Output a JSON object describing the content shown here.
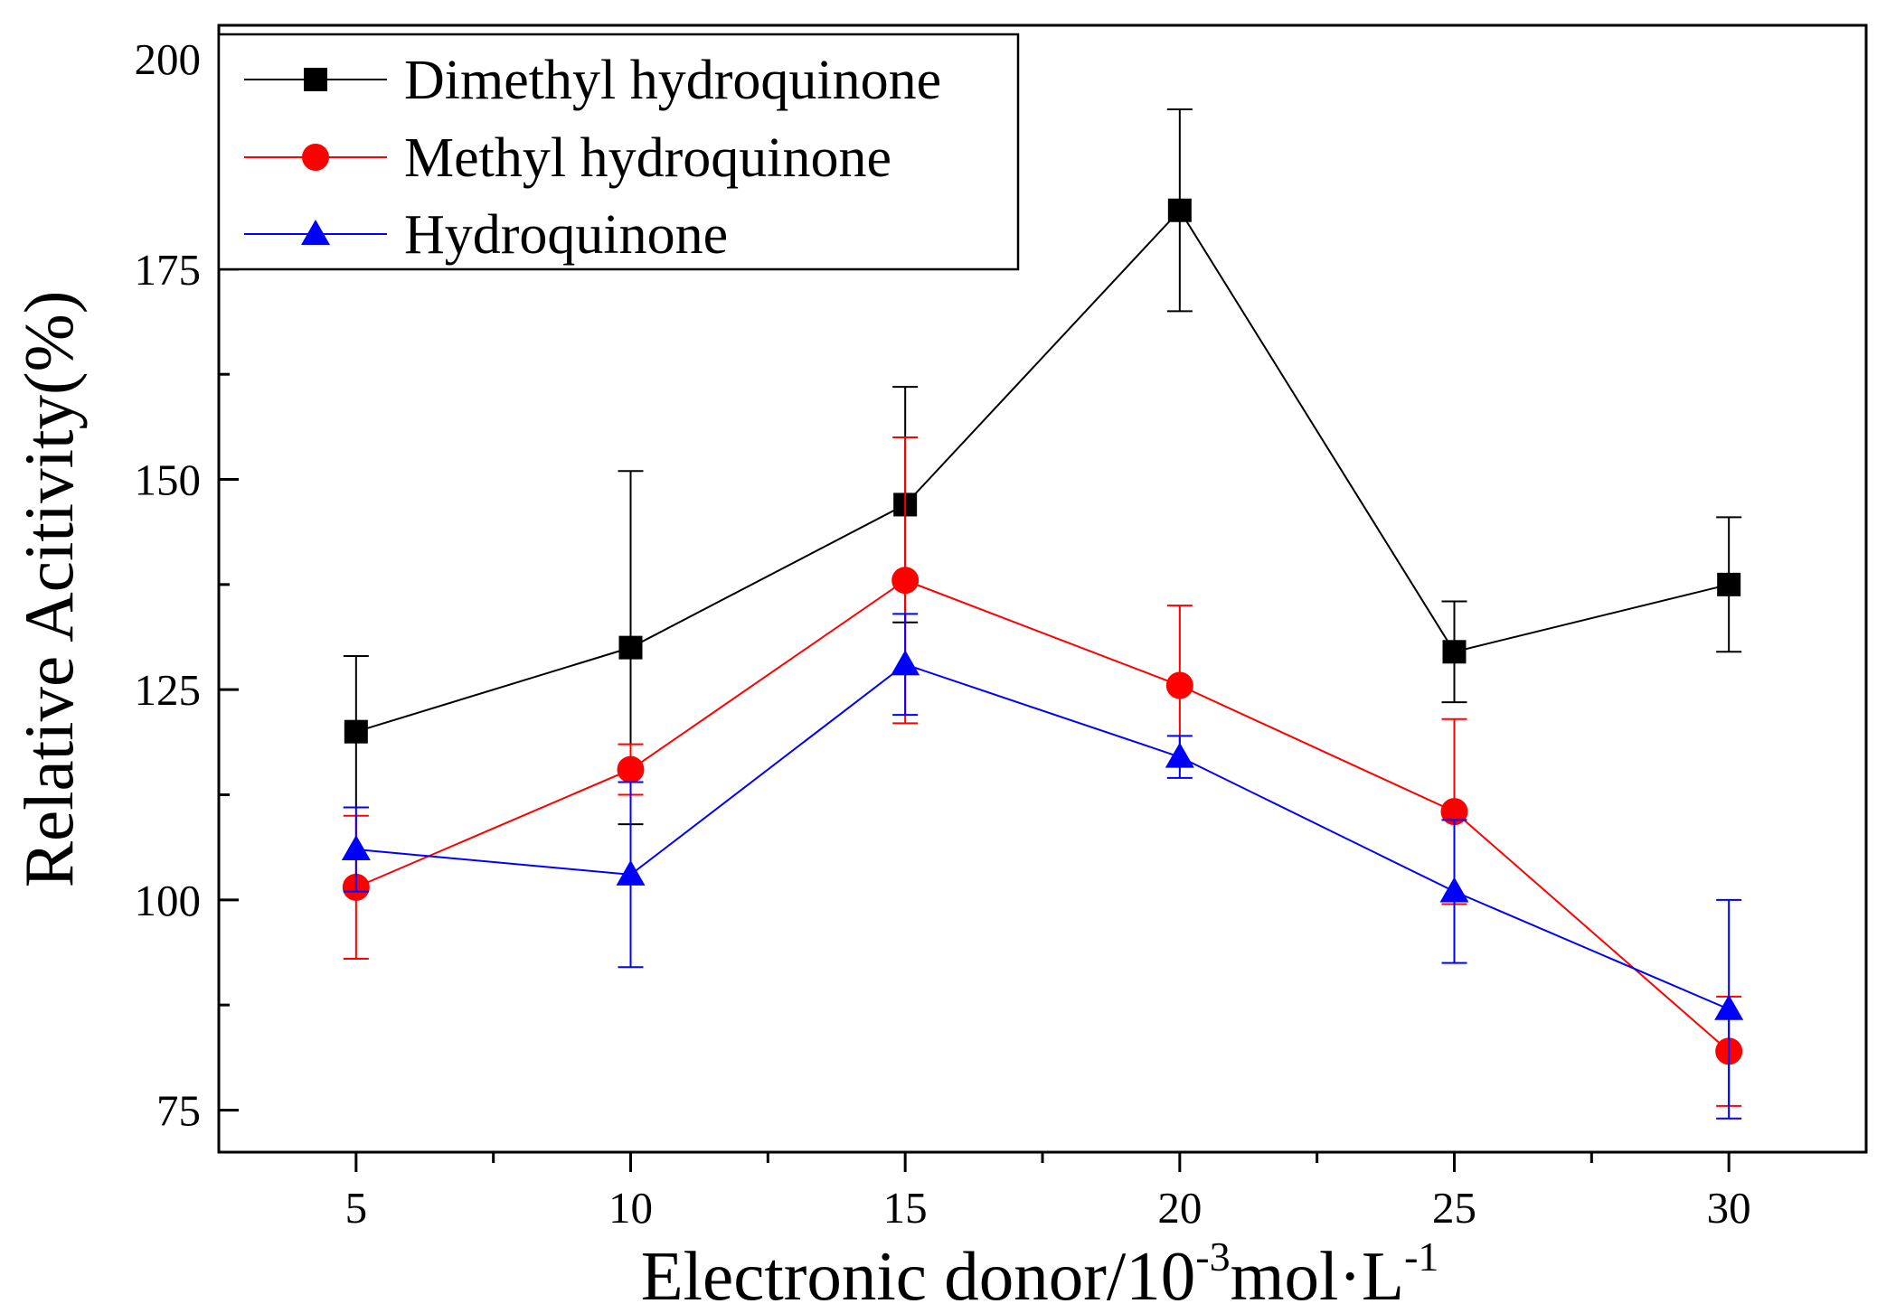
{
  "chart_data": {
    "type": "line",
    "title": "",
    "xlabel": {
      "main": "Electronic donor/10",
      "sup1": "-3",
      "mid": "mol·L",
      "sup2": "-1"
    },
    "ylabel": "Relative Acitivity(%)",
    "x": [
      5,
      10,
      15,
      20,
      25,
      30
    ],
    "xlim": [
      2.5,
      32.5
    ],
    "ylim": [
      70,
      204
    ],
    "xticks": [
      5,
      10,
      15,
      20,
      25,
      30
    ],
    "xtick_labels": [
      "5",
      "10",
      "15",
      "20",
      "25",
      "30"
    ],
    "yticks": [
      75,
      100,
      125,
      150,
      175,
      200
    ],
    "ytick_labels": [
      "75",
      "100",
      "125",
      "150",
      "175",
      "200"
    ],
    "grid": false,
    "legend_position": "top-left",
    "series": [
      {
        "name": "Dimethyl hydroquinone",
        "color": "#000000",
        "marker": "square",
        "values": [
          120,
          130,
          147,
          182,
          129.5,
          137.5
        ],
        "err_low": [
          9,
          21,
          14,
          12,
          6,
          8
        ],
        "err_high": [
          9,
          21,
          14,
          12,
          6,
          8
        ]
      },
      {
        "name": "Methyl hydroquinone",
        "color": "#ff0000",
        "marker": "circle",
        "values": [
          101.5,
          115.5,
          138,
          125.5,
          110.5,
          82
        ],
        "err_low": [
          8.5,
          3,
          17,
          9.5,
          11,
          6.5
        ],
        "err_high": [
          8.5,
          3,
          17,
          9.5,
          11,
          6.5
        ]
      },
      {
        "name": "Hydroquinone",
        "color": "#0000ff",
        "marker": "triangle",
        "values": [
          106,
          103,
          128,
          117,
          101,
          87
        ],
        "err_low": [
          5,
          11,
          6,
          2.5,
          8.5,
          13
        ],
        "err_high": [
          5,
          11,
          6,
          2.5,
          8.5,
          13
        ]
      }
    ]
  }
}
